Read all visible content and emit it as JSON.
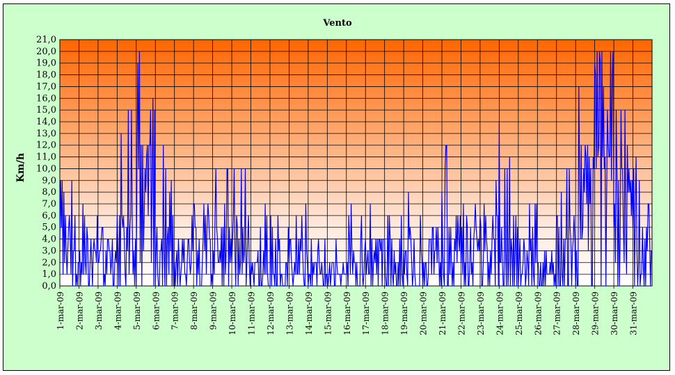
{
  "chart_data": {
    "type": "line",
    "title": "Vento",
    "xlabel": "",
    "ylabel": "Km/h",
    "ylim": [
      0,
      21
    ],
    "ytick_step": 1,
    "yticks": [
      "0,0",
      "1,0",
      "2,0",
      "3,0",
      "4,0",
      "5,0",
      "6,0",
      "7,0",
      "8,0",
      "9,0",
      "10,0",
      "11,0",
      "12,0",
      "13,0",
      "14,0",
      "15,0",
      "16,0",
      "17,0",
      "18,0",
      "19,0",
      "20,0",
      "21,0"
    ],
    "categories": [
      "1-mar-09",
      "2-mar-09",
      "3-mar-09",
      "4-mar-09",
      "5-mar-09",
      "6-mar-09",
      "7-mar-09",
      "8-mar-09",
      "9-mar-09",
      "10-mar-09",
      "11-mar-09",
      "12-mar-09",
      "13-mar-09",
      "14-mar-09",
      "15-mar-09",
      "16-mar-09",
      "17-mar-09",
      "18-mar-09",
      "19-mar-09",
      "20-mar-09",
      "21-mar-09",
      "22-mar-09",
      "23-mar-09",
      "24-mar-09",
      "25-mar-09",
      "26-mar-09",
      "27-mar-09",
      "28-mar-09",
      "29-mar-09",
      "30-mar-09",
      "31-mar-09"
    ],
    "grid": true,
    "legend": "none",
    "plot_background": "gradient orange-to-white",
    "series": [
      {
        "color": "#0000ff",
        "daily_envelope": [
          {
            "day": "1-mar-09",
            "typical": 3,
            "max": 9
          },
          {
            "day": "2-mar-09",
            "typical": 2,
            "max": 7
          },
          {
            "day": "3-mar-09",
            "typical": 2,
            "max": 5
          },
          {
            "day": "4-mar-09",
            "typical": 3,
            "max": 15
          },
          {
            "day": "5-mar-09",
            "typical": 7,
            "max": 20
          },
          {
            "day": "6-mar-09",
            "typical": 3,
            "max": 12
          },
          {
            "day": "7-mar-09",
            "typical": 2,
            "max": 6
          },
          {
            "day": "8-mar-09",
            "typical": 3,
            "max": 7
          },
          {
            "day": "9-mar-09",
            "typical": 3,
            "max": 10
          },
          {
            "day": "10-mar-09",
            "typical": 3,
            "max": 10
          },
          {
            "day": "11-mar-09",
            "typical": 1,
            "max": 7
          },
          {
            "day": "12-mar-09",
            "typical": 2,
            "max": 6
          },
          {
            "day": "13-mar-09",
            "typical": 2,
            "max": 7
          },
          {
            "day": "14-mar-09",
            "typical": 1,
            "max": 4
          },
          {
            "day": "15-mar-09",
            "typical": 1,
            "max": 4
          },
          {
            "day": "16-mar-09",
            "typical": 2,
            "max": 7
          },
          {
            "day": "17-mar-09",
            "typical": 2,
            "max": 7
          },
          {
            "day": "18-mar-09",
            "typical": 2,
            "max": 6
          },
          {
            "day": "19-mar-09",
            "typical": 2,
            "max": 8
          },
          {
            "day": "20-mar-09",
            "typical": 2,
            "max": 5
          },
          {
            "day": "21-mar-09",
            "typical": 3,
            "max": 12
          },
          {
            "day": "22-mar-09",
            "typical": 3,
            "max": 7
          },
          {
            "day": "23-mar-09",
            "typical": 3,
            "max": 9
          },
          {
            "day": "24-mar-09",
            "typical": 3,
            "max": 14
          },
          {
            "day": "25-mar-09",
            "typical": 2,
            "max": 7
          },
          {
            "day": "26-mar-09",
            "typical": 1,
            "max": 3
          },
          {
            "day": "27-mar-09",
            "typical": 3,
            "max": 10
          },
          {
            "day": "28-mar-09",
            "typical": 6,
            "max": 17
          },
          {
            "day": "29-mar-09",
            "typical": 10,
            "max": 20
          },
          {
            "day": "30-mar-09",
            "typical": 5,
            "max": 15
          },
          {
            "day": "31-mar-09",
            "typical": 4,
            "max": 11
          }
        ]
      }
    ]
  }
}
